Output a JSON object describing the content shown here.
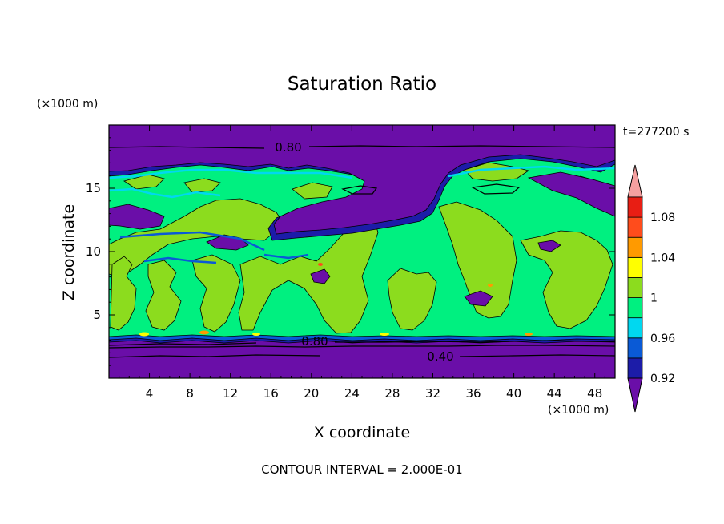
{
  "chart_data": {
    "type": "heatmap",
    "title": "Saturation Ratio",
    "xlabel": "X coordinate",
    "ylabel": "Z coordinate",
    "x_unit": "(×1000 m)",
    "y_unit": "(×1000 m)",
    "time_label": "t=277200 s",
    "footer": "CONTOUR INTERVAL = 2.000E-01",
    "xlim": [
      0,
      50
    ],
    "ylim": [
      0,
      20
    ],
    "x_ticks": [
      "4",
      "8",
      "12",
      "16",
      "20",
      "24",
      "28",
      "32",
      "36",
      "40",
      "44",
      "48"
    ],
    "y_ticks": [
      "5",
      "10",
      "15"
    ],
    "colorbar": {
      "levels": [
        {
          "max": 0.92,
          "color": "#6a0ea8"
        },
        {
          "max": 0.94,
          "color": "#1c1ca8"
        },
        {
          "max": 0.96,
          "color": "#0a5ad6"
        },
        {
          "max": 0.98,
          "color": "#00d8f0"
        },
        {
          "max": 1.0,
          "color": "#00f080"
        },
        {
          "max": 1.02,
          "color": "#8cdc1e"
        },
        {
          "max": 1.04,
          "color": "#ffff00"
        },
        {
          "max": 1.06,
          "color": "#ff9a00"
        },
        {
          "max": 1.08,
          "color": "#ff4c1c"
        },
        {
          "max": 1.1,
          "color": "#e81e14"
        },
        {
          "max": 9.99,
          "color": "#f5a0a0"
        }
      ],
      "tick_labels": [
        "1.08",
        "1.04",
        "1",
        "0.96",
        "0.92"
      ]
    },
    "contour_labels": [
      "0.80",
      "0.80",
      "0.40"
    ]
  }
}
